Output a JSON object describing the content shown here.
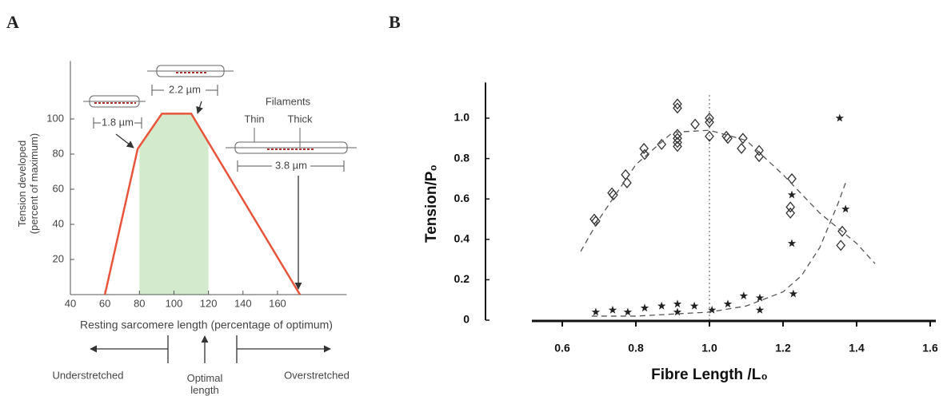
{
  "chart_data": [
    {
      "type": "line",
      "panel": "A",
      "xlabel": "Resting sarcomere length (percentage of optimum)",
      "ylabel": "Tension developed (percent of maximum)",
      "x": [
        60,
        79,
        93,
        110,
        173
      ],
      "series": [
        {
          "color": "#e8553a",
          "values": [
            0,
            83,
            103,
            103,
            0
          ]
        }
      ],
      "xlim": [
        40,
        200
      ],
      "xticks": [
        40,
        60,
        80,
        100,
        120,
        140,
        160
      ],
      "ylim": [
        0,
        133
      ],
      "yticks": [
        20,
        40,
        60,
        80,
        100
      ],
      "shaded_region": {
        "range": [
          80,
          120
        ],
        "color": "#d3ebcc"
      },
      "annotations": [
        "1.8 µm",
        "2.2 µm",
        "Filaments",
        "Thin",
        "Thick",
        "3.8 µm",
        "Understretched",
        "Optimal length",
        "Overstretched"
      ]
    },
    {
      "type": "scatter",
      "panel": "B",
      "xlabel": "Fibre Length /L₀",
      "ylabel": "Tension/P₀",
      "xlim": [
        0.4,
        1.6
      ],
      "xticks": [
        0.6,
        0.8,
        {
          "value": 1,
          "label": "1.0"
        },
        1.2,
        1.4,
        1.6
      ],
      "ylim": [
        0,
        1.2
      ],
      "yticks": [
        {
          "value": 0,
          "label": "0"
        },
        0.2,
        0.4,
        0.6,
        0.8,
        {
          "value": 1,
          "label": "1.0"
        }
      ],
      "vline": 1,
      "series": [
        {
          "kind": "marker",
          "marker": "diamond",
          "color": "#333333",
          "x": [
            0.687,
            0.691,
            0.735,
            0.739,
            0.772,
            0.776,
            0.822,
            0.824,
            0.87,
            0.913,
            0.913,
            0.913,
            0.913,
            0.913,
            0.913,
            0.961,
            1.0,
            1.0,
            1.0,
            1.046,
            1.05,
            1.091,
            1.087,
            1.135,
            1.135,
            1.224,
            1.22,
            1.22,
            1.361,
            1.357
          ],
          "values": [
            0.5,
            0.49,
            0.63,
            0.62,
            0.72,
            0.68,
            0.85,
            0.82,
            0.87,
            0.92,
            1.07,
            1.05,
            0.9,
            0.88,
            0.86,
            0.97,
            1.0,
            0.98,
            0.91,
            0.91,
            0.9,
            0.9,
            0.85,
            0.84,
            0.81,
            0.7,
            0.56,
            0.53,
            0.44,
            0.37
          ]
        },
        {
          "kind": "marker",
          "marker": "star",
          "color": "#222222",
          "x": [
            1.354,
            1.37,
            1.224,
            1.224,
            1.228,
            0.691,
            0.737,
            0.778,
            0.824,
            0.87,
            0.913,
            0.913,
            0.959,
            1.007,
            1.05,
            1.093,
            1.137,
            1.137
          ],
          "values": [
            1.0,
            0.55,
            0.62,
            0.38,
            0.13,
            0.04,
            0.05,
            0.04,
            0.06,
            0.07,
            0.08,
            0.04,
            0.07,
            0.05,
            0.08,
            0.12,
            0.11,
            0.05
          ]
        },
        {
          "kind": "line",
          "style": "dashed",
          "color": "#555555",
          "x": [
            0.65,
            0.7,
            0.8,
            0.9,
            1.0,
            1.1,
            1.2,
            1.3,
            1.4,
            1.45
          ],
          "values": [
            0.34,
            0.5,
            0.77,
            0.93,
            0.94,
            0.89,
            0.72,
            0.53,
            0.38,
            0.28
          ]
        },
        {
          "kind": "line",
          "style": "dashed",
          "color": "#555555",
          "x": [
            0.68,
            0.8,
            0.9,
            1.0,
            1.1,
            1.2,
            1.25,
            1.3,
            1.35,
            1.37
          ],
          "values": [
            0.02,
            0.02,
            0.03,
            0.04,
            0.07,
            0.14,
            0.22,
            0.36,
            0.58,
            0.68
          ]
        }
      ]
    }
  ]
}
